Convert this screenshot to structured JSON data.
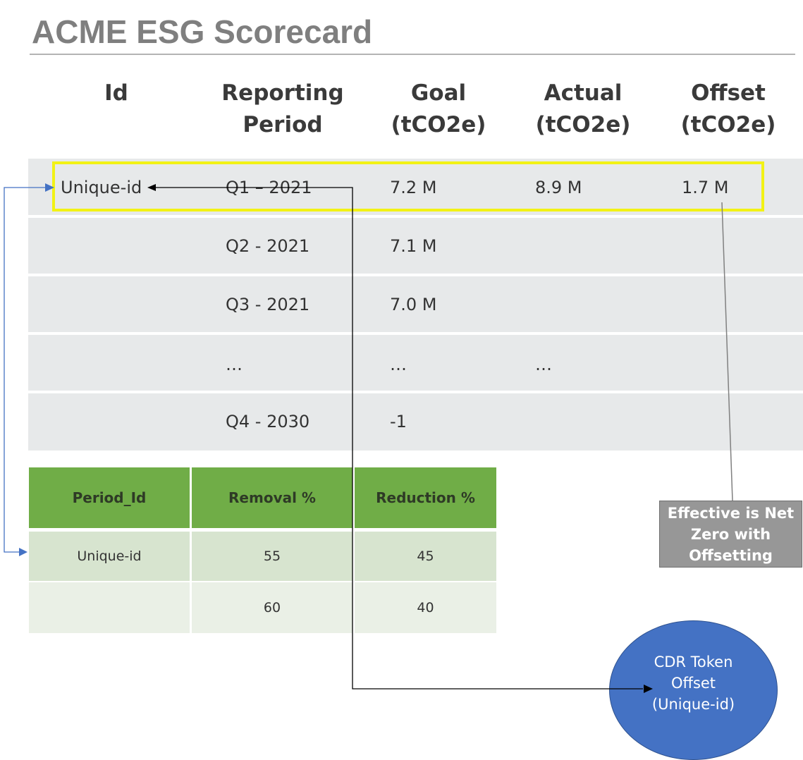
{
  "title": "ACME ESG Scorecard",
  "scorecard": {
    "headers": {
      "id": [
        "Id"
      ],
      "period": [
        "Reporting",
        "Period"
      ],
      "goal": [
        "Goal",
        "(tCO2e)"
      ],
      "actual": [
        "Actual",
        "(tCO2e)"
      ],
      "offset": [
        "Offset",
        "(tCO2e)"
      ]
    },
    "rows": [
      {
        "id": "Unique-id",
        "period": "Q1 – 2021",
        "goal": "7.2 M",
        "actual": "8.9 M",
        "offset": "1.7 M"
      },
      {
        "id": "",
        "period": "Q2 - 2021",
        "goal": "7.1 M",
        "actual": "",
        "offset": ""
      },
      {
        "id": "",
        "period": "Q3 - 2021",
        "goal": "7.0 M",
        "actual": "",
        "offset": ""
      },
      {
        "id": "",
        "period": "…",
        "goal": "…",
        "actual": "…",
        "offset": ""
      },
      {
        "id": "",
        "period": "Q4 - 2030",
        "goal": "-1",
        "actual": "",
        "offset": ""
      }
    ]
  },
  "split_table": {
    "headers": [
      "Period_Id",
      "Removal %",
      "Reduction %"
    ],
    "rows": [
      [
        "Unique-id",
        "55",
        "45"
      ],
      [
        "",
        "60",
        "40"
      ]
    ]
  },
  "note": {
    "lines": [
      "Effective is Net",
      "Zero with",
      "Offsetting"
    ]
  },
  "token": {
    "lines": [
      "CDR Token",
      "Offset",
      "(Unique-id)"
    ]
  },
  "colors": {
    "highlight": "#f2f215",
    "table_header": "#70ad47",
    "token_fill": "#4472c4",
    "note_fill": "#979797",
    "arrow_black": "#000000",
    "arrow_blue": "#4472c4"
  }
}
